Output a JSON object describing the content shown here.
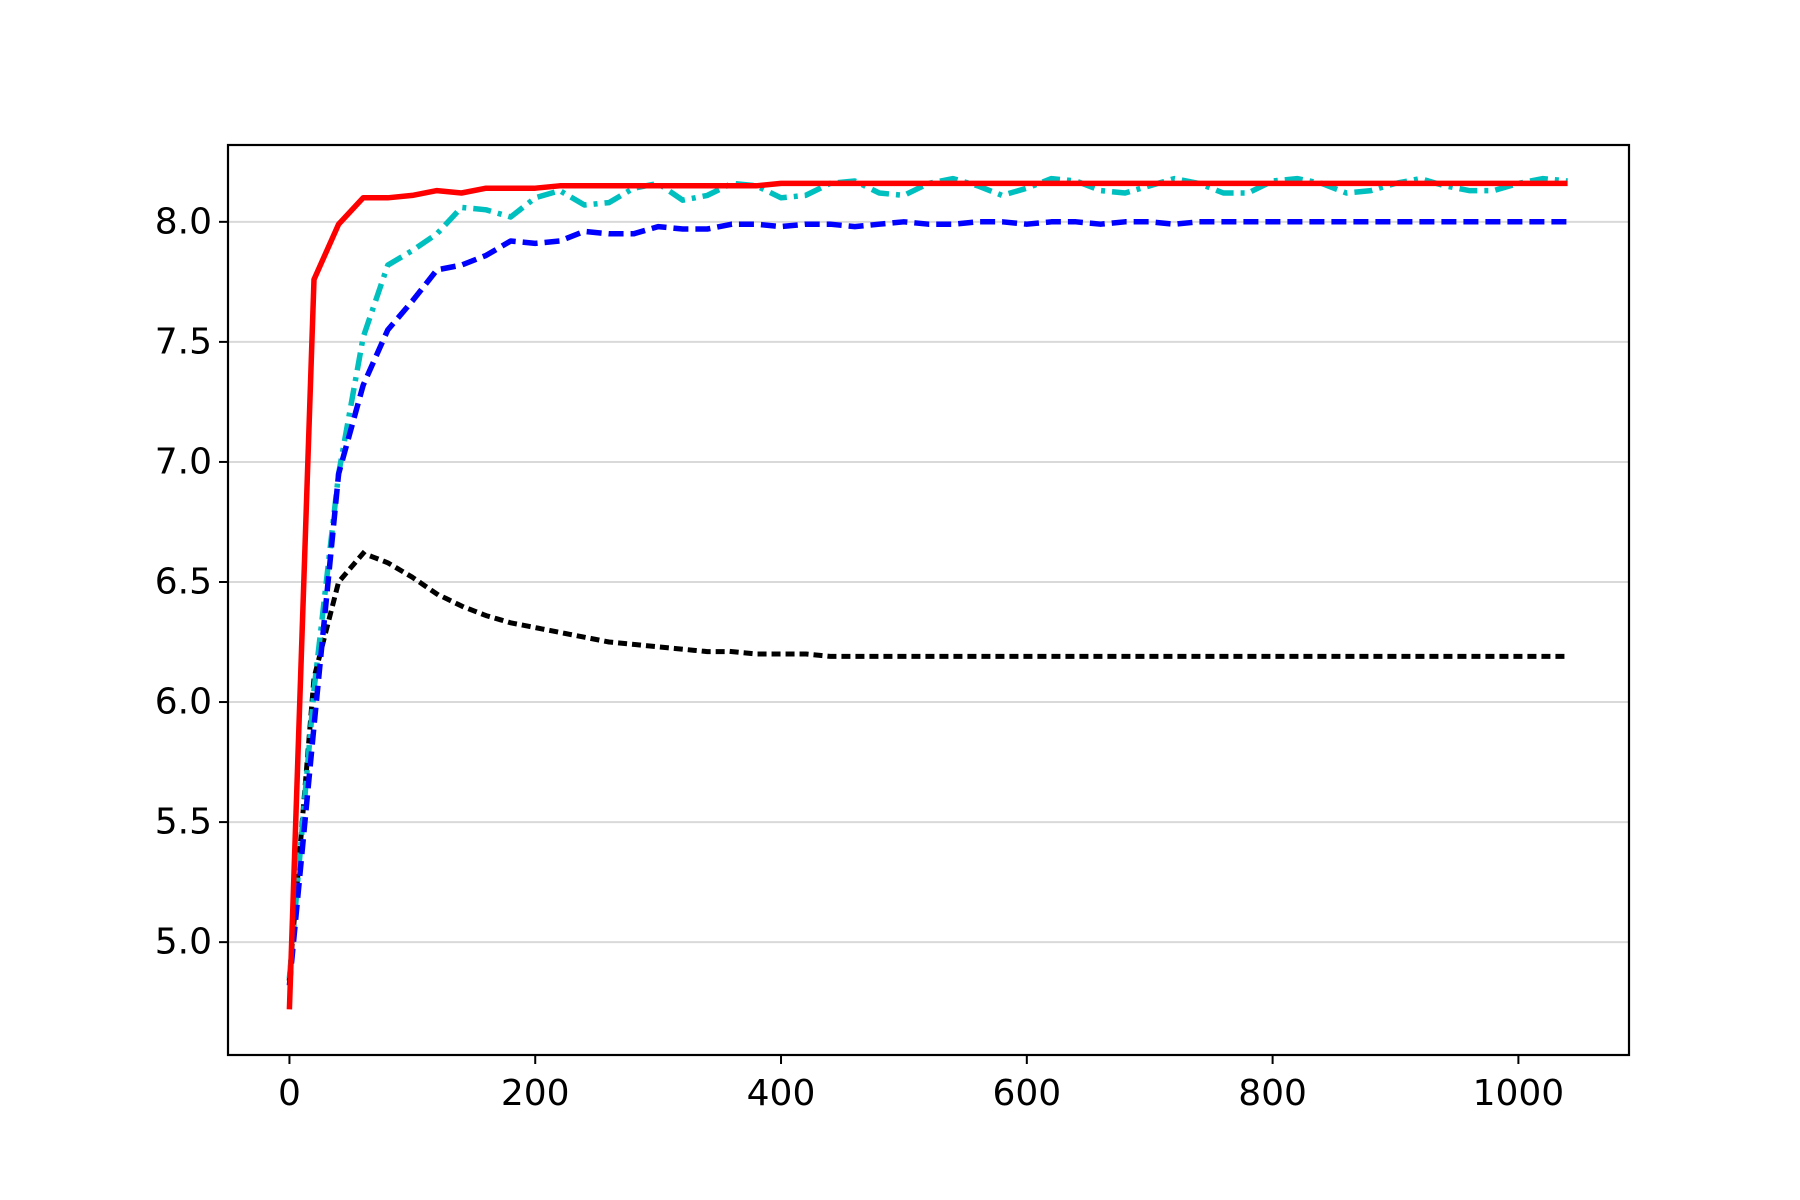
{
  "chart_data": {
    "type": "line",
    "title": "",
    "xlabel": "",
    "ylabel": "",
    "xlim": [
      -50,
      1090
    ],
    "ylim": [
      4.53,
      8.32
    ],
    "x_ticks": [
      0,
      200,
      400,
      600,
      800,
      1000
    ],
    "x_tick_labels": [
      "0",
      "200",
      "400",
      "600",
      "800",
      "1000"
    ],
    "y_ticks": [
      5.0,
      5.5,
      6.0,
      6.5,
      7.0,
      7.5,
      8.0
    ],
    "y_tick_labels": [
      "5.0",
      "5.5",
      "6.0",
      "6.5",
      "7.0",
      "7.5",
      "8.0"
    ],
    "grid": "horizontal",
    "legend": "none",
    "x": [
      0,
      20,
      40,
      60,
      80,
      100,
      120,
      140,
      160,
      180,
      200,
      220,
      240,
      260,
      280,
      300,
      320,
      340,
      360,
      380,
      400,
      420,
      440,
      460,
      480,
      500,
      520,
      540,
      560,
      580,
      600,
      620,
      640,
      660,
      680,
      700,
      720,
      740,
      760,
      780,
      800,
      820,
      840,
      860,
      880,
      900,
      920,
      940,
      960,
      980,
      1000,
      1020,
      1040
    ],
    "series": [
      {
        "color": "#000000",
        "dash": "dotted",
        "values": [
          4.85,
          6.1,
          6.5,
          6.62,
          6.58,
          6.52,
          6.45,
          6.4,
          6.36,
          6.33,
          6.31,
          6.29,
          6.27,
          6.25,
          6.24,
          6.23,
          6.22,
          6.21,
          6.21,
          6.2,
          6.2,
          6.2,
          6.19,
          6.19,
          6.19,
          6.19,
          6.19,
          6.19,
          6.19,
          6.19,
          6.19,
          6.19,
          6.19,
          6.19,
          6.19,
          6.19,
          6.19,
          6.19,
          6.19,
          6.19,
          6.19,
          6.19,
          6.19,
          6.19,
          6.19,
          6.19,
          6.19,
          6.19,
          6.19,
          6.19,
          6.19,
          6.19,
          6.19
        ]
      },
      {
        "color": "#00bfbf",
        "dash": "dashdot",
        "values": [
          4.85,
          6.05,
          6.95,
          7.52,
          7.82,
          7.88,
          7.95,
          8.06,
          8.05,
          8.02,
          8.1,
          8.13,
          8.07,
          8.08,
          8.14,
          8.16,
          8.09,
          8.11,
          8.16,
          8.15,
          8.1,
          8.11,
          8.16,
          8.17,
          8.12,
          8.11,
          8.16,
          8.18,
          8.15,
          8.11,
          8.14,
          8.18,
          8.17,
          8.13,
          8.12,
          8.15,
          8.18,
          8.16,
          8.12,
          8.12,
          8.17,
          8.18,
          8.16,
          8.12,
          8.13,
          8.16,
          8.18,
          8.15,
          8.13,
          8.13,
          8.16,
          8.18,
          8.17
        ]
      },
      {
        "color": "#0000ff",
        "dash": "dashed",
        "values": [
          4.82,
          5.9,
          6.95,
          7.32,
          7.55,
          7.67,
          7.8,
          7.82,
          7.86,
          7.92,
          7.91,
          7.92,
          7.96,
          7.95,
          7.95,
          7.98,
          7.97,
          7.97,
          7.99,
          7.99,
          7.98,
          7.99,
          7.99,
          7.98,
          7.99,
          8.0,
          7.99,
          7.99,
          8.0,
          8.0,
          7.99,
          8.0,
          8.0,
          7.99,
          8.0,
          8.0,
          7.99,
          8.0,
          8.0,
          8.0,
          8.0,
          8.0,
          8.0,
          8.0,
          8.0,
          8.0,
          8.0,
          8.0,
          8.0,
          8.0,
          8.0,
          8.0,
          8.0
        ]
      },
      {
        "color": "#ff0000",
        "dash": "solid",
        "values": [
          4.72,
          7.76,
          7.99,
          8.1,
          8.1,
          8.11,
          8.13,
          8.12,
          8.14,
          8.14,
          8.14,
          8.15,
          8.15,
          8.15,
          8.15,
          8.15,
          8.15,
          8.15,
          8.15,
          8.15,
          8.16,
          8.16,
          8.16,
          8.16,
          8.16,
          8.16,
          8.16,
          8.16,
          8.16,
          8.16,
          8.16,
          8.16,
          8.16,
          8.16,
          8.16,
          8.16,
          8.16,
          8.16,
          8.16,
          8.16,
          8.16,
          8.16,
          8.16,
          8.16,
          8.16,
          8.16,
          8.16,
          8.16,
          8.16,
          8.16,
          8.16,
          8.16,
          8.16
        ]
      }
    ]
  }
}
